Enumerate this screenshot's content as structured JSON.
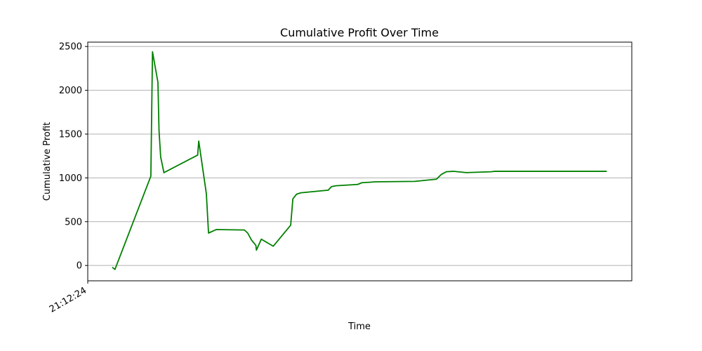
{
  "chart_data": {
    "type": "line",
    "title": "Cumulative Profit Over Time",
    "xlabel": "Time",
    "ylabel": "Cumulative Profit",
    "ylim": [
      -175,
      2550
    ],
    "yticks": [
      0,
      500,
      1000,
      1500,
      2000,
      2500
    ],
    "xticks": [
      {
        "x": 0,
        "label": "21:12:24"
      }
    ],
    "xlim": [
      0,
      100
    ],
    "grid": "y",
    "line_color": "#008000",
    "series": [
      {
        "points": [
          [
            4.5,
            -20
          ],
          [
            5.0,
            -45
          ],
          [
            11.6,
            1020
          ],
          [
            11.9,
            2440
          ],
          [
            12.9,
            2090
          ],
          [
            13.1,
            1540
          ],
          [
            13.4,
            1240
          ],
          [
            14.0,
            1060
          ],
          [
            20.2,
            1260
          ],
          [
            20.4,
            1420
          ],
          [
            21.8,
            820
          ],
          [
            22.2,
            370
          ],
          [
            23.6,
            410
          ],
          [
            28.8,
            405
          ],
          [
            29.4,
            370
          ],
          [
            30.1,
            290
          ],
          [
            30.9,
            230
          ],
          [
            31.0,
            175
          ],
          [
            31.9,
            300
          ],
          [
            34.1,
            220
          ],
          [
            37.3,
            460
          ],
          [
            37.7,
            760
          ],
          [
            38.4,
            815
          ],
          [
            39.2,
            830
          ],
          [
            44.2,
            860
          ],
          [
            44.8,
            900
          ],
          [
            45.6,
            910
          ],
          [
            49.6,
            925
          ],
          [
            50.4,
            945
          ],
          [
            51.8,
            950
          ],
          [
            52.8,
            955
          ],
          [
            60.1,
            960
          ],
          [
            64.1,
            985
          ],
          [
            65.0,
            1040
          ],
          [
            65.9,
            1070
          ],
          [
            67.2,
            1075
          ],
          [
            69.6,
            1060
          ],
          [
            74.2,
            1070
          ],
          [
            74.8,
            1075
          ],
          [
            95.4,
            1075
          ]
        ]
      }
    ]
  }
}
